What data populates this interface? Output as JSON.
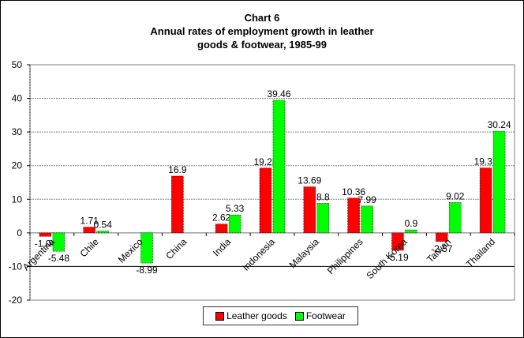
{
  "chart_data": {
    "type": "bar",
    "title": "Chart 6",
    "subtitle_lines": [
      "Annual rates of employment growth in leather",
      "goods & footwear, 1985-99"
    ],
    "categories": [
      "Argentina",
      "Chile",
      "Mexico",
      "China",
      "India",
      "Indonesia",
      "Malaysia",
      "Philippines",
      "South Korea",
      "Taiwan",
      "Thailand"
    ],
    "series": [
      {
        "name": "Leather goods",
        "color": "#ff0000",
        "values": [
          -1.04,
          1.71,
          null,
          16.9,
          2.62,
          19.28,
          13.69,
          10.36,
          -5.19,
          -2.57,
          19.31
        ],
        "labels": [
          "-1.04",
          "1.71",
          "",
          "16.9",
          "2.62",
          "19.28",
          "13.69",
          "10.36",
          "-5.19",
          "-2.57",
          "19.31"
        ]
      },
      {
        "name": "Footwear",
        "color": "#00ff00",
        "values": [
          -5.48,
          0.54,
          -8.99,
          null,
          5.33,
          39.46,
          8.8,
          7.99,
          0.9,
          9.02,
          30.24
        ],
        "labels": [
          "-5.48",
          "0.54",
          "-8.99",
          "",
          "5.33",
          "39.46",
          "8.8",
          "7.99",
          "0.9",
          "9.02",
          "30.24"
        ]
      }
    ],
    "xlabel": "",
    "ylabel": "",
    "ylim": [
      -20,
      50
    ],
    "yticks": [
      "50",
      "40",
      "30",
      "20",
      "10",
      "0",
      "-10",
      "-20"
    ],
    "grid": true,
    "legend": "bottom"
  }
}
